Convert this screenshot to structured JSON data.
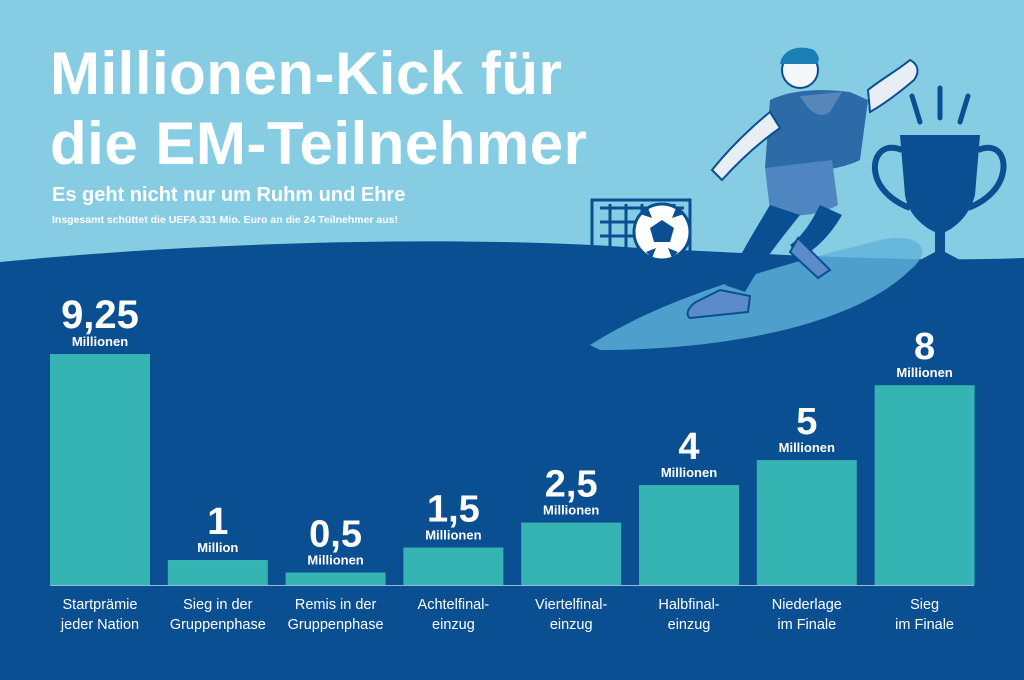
{
  "title_line_1": "Millionen-Kick für",
  "title_line_2": "die EM-Teilnehmer",
  "subtitle": "Es geht nicht nur um Ruhm und Ehre",
  "note": "Insgesamt schüttet die UEFA 331 Mio. Euro an die 24 Teilnehmer aus!",
  "colors": {
    "sky": "#86cde4",
    "field": "#0b4f93",
    "bar": "#36b3b3",
    "text": "#ffffff"
  },
  "chart_data": {
    "type": "bar",
    "categories": [
      [
        "Startprämie",
        "jeder Nation"
      ],
      [
        "Sieg in der",
        "Gruppenphase"
      ],
      [
        "Remis in der",
        "Gruppenphase"
      ],
      [
        "Achtelfinal-",
        "einzug"
      ],
      [
        "Viertelfinal-",
        "einzug"
      ],
      [
        "Halbfinal-",
        "einzug"
      ],
      [
        "Niederlage",
        "im Finale"
      ],
      [
        "Sieg",
        "im Finale"
      ]
    ],
    "values": [
      9.25,
      1,
      0.5,
      1.5,
      2.5,
      4,
      5,
      8
    ],
    "value_labels": [
      "9,25",
      "1",
      "0,5",
      "1,5",
      "2,5",
      "4",
      "5",
      "8"
    ],
    "unit_labels": [
      "Millionen",
      "Million",
      "Millionen",
      "Millionen",
      "Millionen",
      "Millionen",
      "Millionen",
      "Millionen"
    ],
    "ylim": [
      0,
      9.25
    ],
    "grid": false,
    "legend": "none"
  }
}
